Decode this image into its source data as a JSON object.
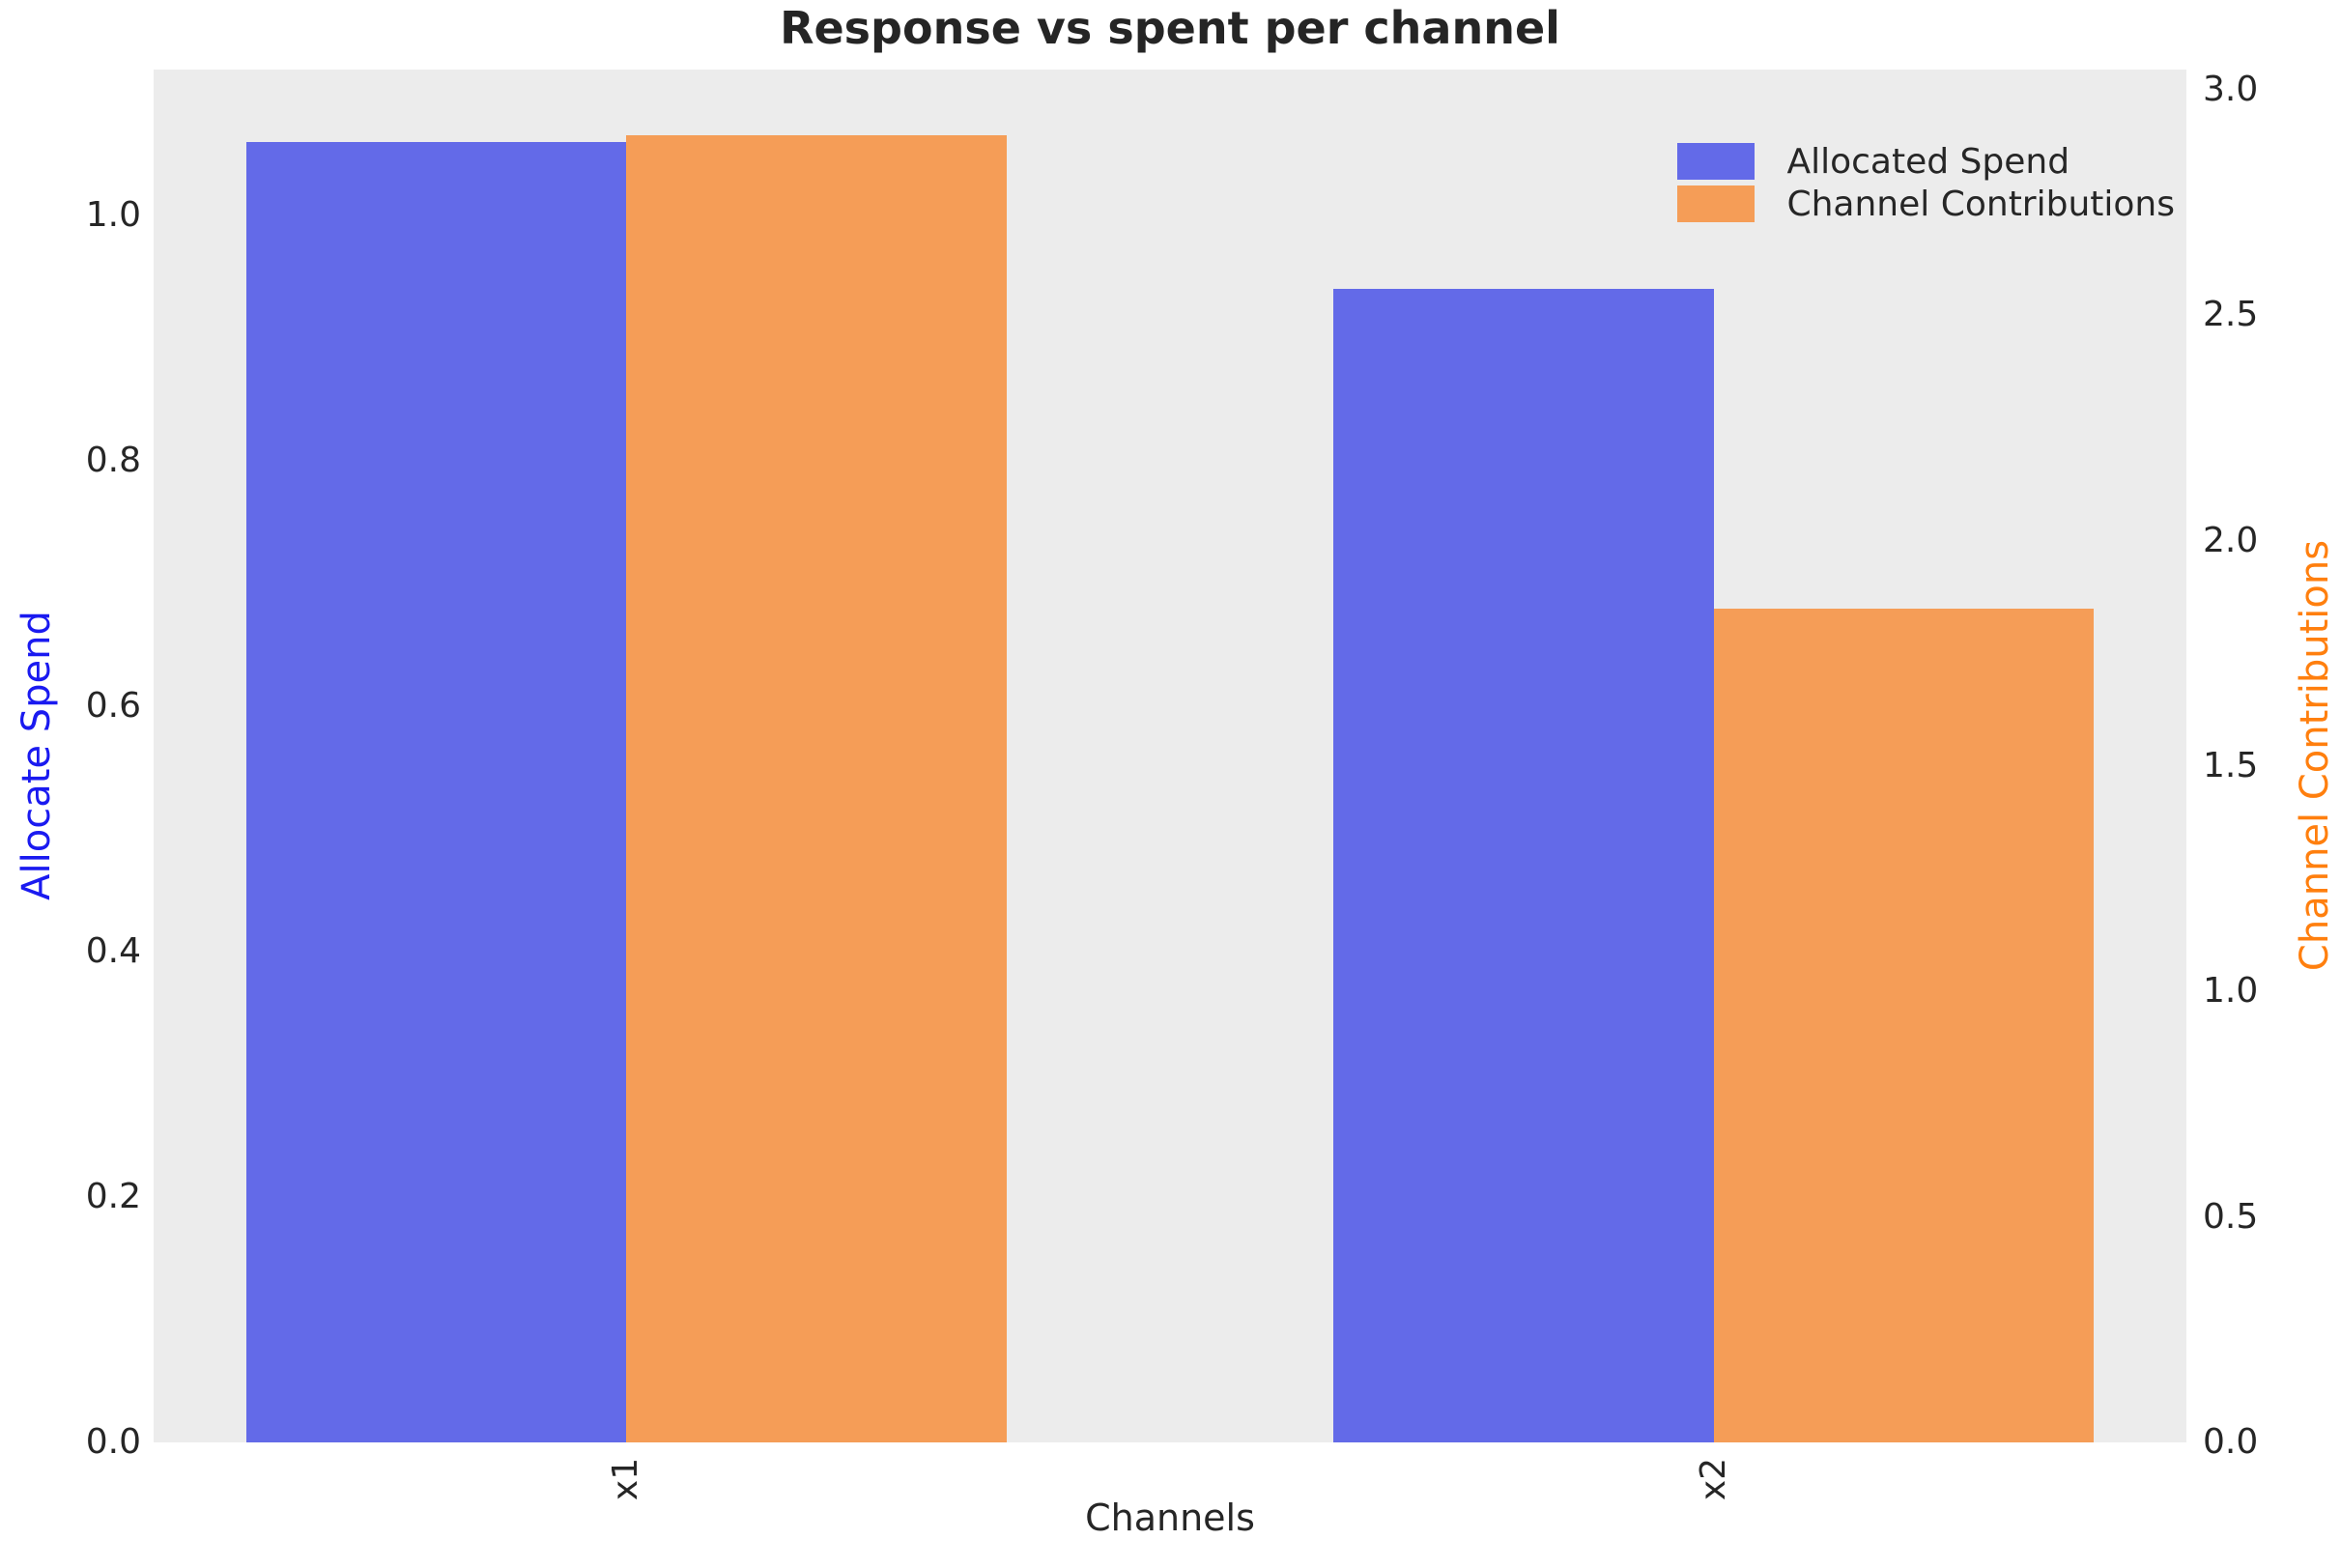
{
  "chart_data": {
    "type": "bar",
    "title": "Response vs spent per channel",
    "xlabel": "Channels",
    "categories": [
      "x1",
      "x2"
    ],
    "series": [
      {
        "name": "Allocated Spend",
        "axis": "left",
        "color": "#636ae8",
        "values": [
          1.06,
          0.94
        ]
      },
      {
        "name": "Channel Contributions",
        "axis": "right",
        "color": "#f59d57",
        "values": [
          2.9,
          1.85
        ]
      }
    ],
    "axes": {
      "left": {
        "label": "Allocate Spend",
        "label_color": "#1a1af0",
        "tick_labels": [
          "0.0",
          "0.2",
          "0.4",
          "0.6",
          "0.8",
          "1.0"
        ],
        "tick_values": [
          0.0,
          0.2,
          0.4,
          0.6,
          0.8,
          1.0
        ],
        "ylim": [
          0,
          1.119
        ]
      },
      "right": {
        "label": "Channel Contributions",
        "label_color": "#ff7f0e",
        "tick_labels": [
          "0.0",
          "0.5",
          "1.0",
          "1.5",
          "2.0",
          "2.5",
          "3.0"
        ],
        "tick_values": [
          0.0,
          0.5,
          1.0,
          1.5,
          2.0,
          2.5,
          3.0
        ],
        "ylim": [
          0,
          3.045
        ]
      }
    },
    "xlim": [
      -0.435,
      1.435
    ],
    "bar_width": 0.35,
    "legend": {
      "position": "upper right",
      "entries": [
        "Allocated Spend",
        "Channel Contributions"
      ]
    },
    "grid": false,
    "plot_bg": "#ececec",
    "text_color": "#262626"
  }
}
